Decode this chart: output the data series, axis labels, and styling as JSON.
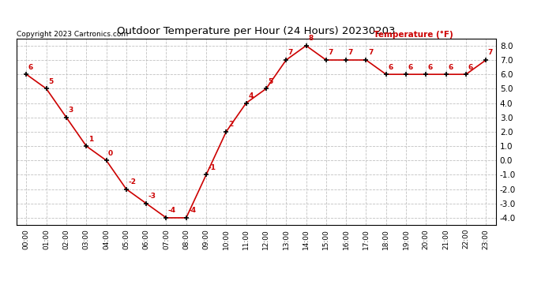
{
  "title": "Outdoor Temperature per Hour (24 Hours) 20230203",
  "copyright_text": "Copyright 2023 Cartronics.com",
  "legend_label": "Temperature (°F)",
  "hours": [
    "00:00",
    "01:00",
    "02:00",
    "03:00",
    "04:00",
    "05:00",
    "06:00",
    "07:00",
    "08:00",
    "09:00",
    "10:00",
    "11:00",
    "12:00",
    "13:00",
    "14:00",
    "15:00",
    "16:00",
    "17:00",
    "18:00",
    "19:00",
    "20:00",
    "21:00",
    "22:00",
    "23:00"
  ],
  "temperatures": [
    6,
    5,
    3,
    1,
    0,
    -2,
    -3,
    -4,
    -4,
    -1,
    2,
    4,
    5,
    7,
    8,
    7,
    7,
    7,
    6,
    6,
    6,
    6,
    6,
    7
  ],
  "ylim": [
    -4.5,
    8.5
  ],
  "yticks": [
    -4.0,
    -3.0,
    -2.0,
    -1.0,
    0.0,
    1.0,
    2.0,
    3.0,
    4.0,
    5.0,
    6.0,
    7.0,
    8.0
  ],
  "line_color": "#cc0000",
  "marker_color": "#000000",
  "label_color": "#cc0000",
  "title_color": "#000000",
  "background_color": "#ffffff",
  "grid_color": "#bbbbbb"
}
